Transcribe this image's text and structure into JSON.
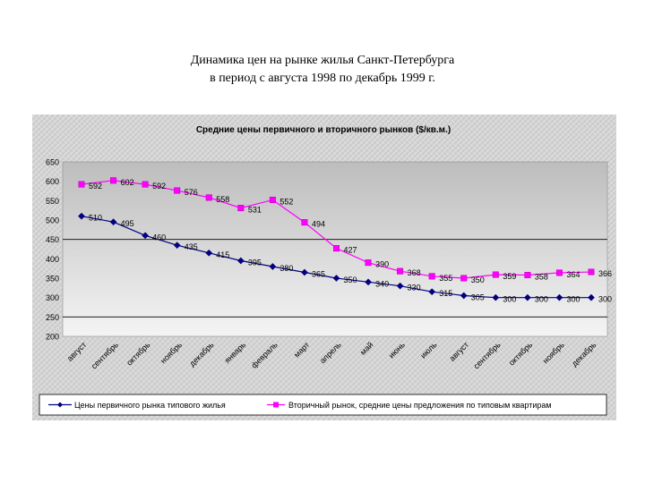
{
  "slide": {
    "title_line1": "Динамика цен на рынке жилья Санкт-Петербурга",
    "title_line2": "в период с августа 1998 по декабрь 1999 г."
  },
  "colors": {
    "primary_series": "#000080",
    "secondary_series": "#ff00ff",
    "plot_top": "#bdbdbd",
    "plot_bottom": "#f4f4f4",
    "frame_texture": "#cfcfcf"
  },
  "chart_data": {
    "type": "line",
    "title": "Средние цены первичного и вторичного рынков ($/кв.м.)",
    "categories": [
      "август",
      "сентябрь",
      "октябрь",
      "ноябрь",
      "декабрь",
      "январь",
      "февраль",
      "март",
      "апрель",
      "май",
      "июнь",
      "июль",
      "август",
      "сентябрь",
      "октябрь",
      "ноябрь",
      "декабрь"
    ],
    "series": [
      {
        "name": "Цены первичного рынка типового жилья",
        "marker": "diamond",
        "color": "#000080",
        "values": [
          510,
          495,
          460,
          435,
          415,
          395,
          380,
          365,
          350,
          340,
          330,
          315,
          305,
          300,
          300,
          300,
          300
        ]
      },
      {
        "name": "Вторичный рынок, средние цены предложения по типовым квартирам",
        "marker": "square",
        "color": "#ff00ff",
        "values": [
          592,
          602,
          592,
          576,
          558,
          531,
          552,
          494,
          427,
          390,
          368,
          355,
          350,
          359,
          358,
          364,
          366
        ]
      }
    ],
    "ylim": [
      200,
      650
    ],
    "yticks": [
      200,
      250,
      300,
      350,
      400,
      450,
      500,
      550,
      600,
      650
    ],
    "reference_lines": [
      450,
      250
    ],
    "grid": false,
    "legend": "bottom",
    "xlabel": "",
    "ylabel": ""
  }
}
